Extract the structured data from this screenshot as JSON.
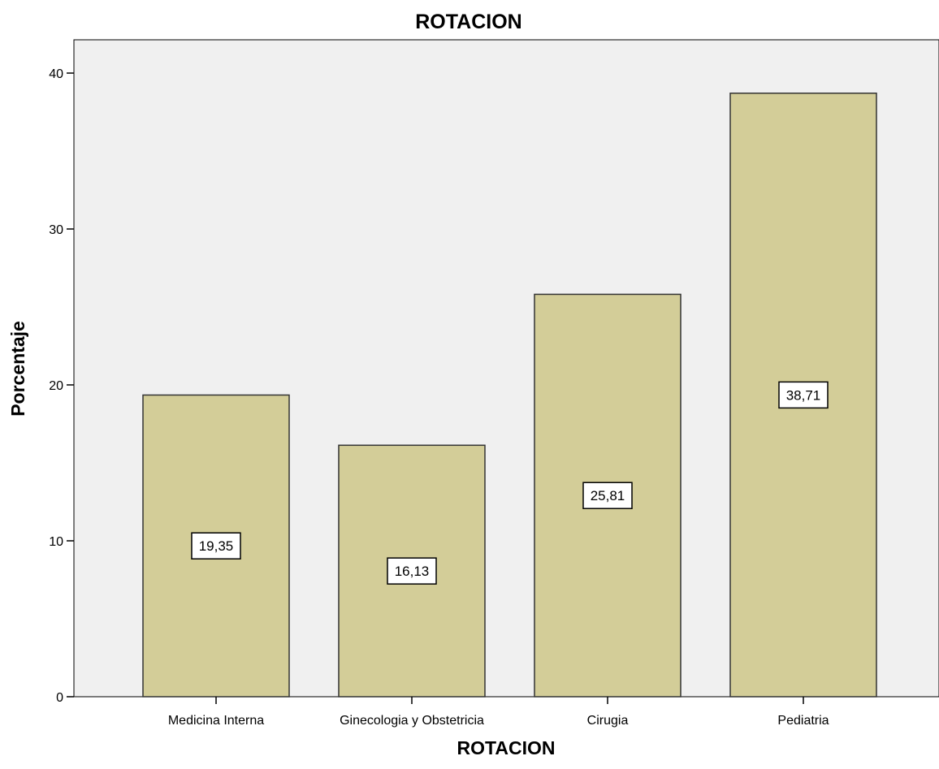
{
  "chart_data": {
    "type": "bar",
    "title": "ROTACION",
    "xlabel": "ROTACION",
    "ylabel": "Porcentaje",
    "categories": [
      "Medicina Interna",
      "Ginecologia y Obstetricia",
      "Cirugia",
      "Pediatria"
    ],
    "values": [
      19.35,
      16.13,
      25.81,
      38.71
    ],
    "value_labels": [
      "19,35",
      "16,13",
      "25,81",
      "38,71"
    ],
    "ylim": [
      0,
      42
    ],
    "yticks": [
      0,
      10,
      20,
      30,
      40
    ],
    "grid": false,
    "colors": {
      "bar_fill": "#d3cd98",
      "bar_stroke": "#333333",
      "plot_background": "#f0f0f0",
      "page_background": "#ffffff",
      "label_box": "#ffffff"
    }
  }
}
